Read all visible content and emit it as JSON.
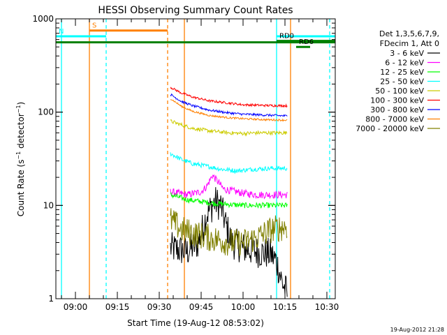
{
  "chart_data": {
    "type": "line",
    "title": "HESSI Observing Summary Count Rates",
    "xlabel": "Start Time (19-Aug-12 08:53:02)",
    "ylabel": "Count Rate (s⁻¹ detector⁻¹)",
    "ylabel_parts": {
      "pre": "Count Rate (s",
      "sup1": "−1",
      "mid": " detector",
      "sup2": "−1",
      "post": ")"
    },
    "yscale": "log",
    "ylim": [
      1,
      1000
    ],
    "xlim": [
      "08:53",
      "10:33"
    ],
    "y_ticks": [
      {
        "v": 1,
        "label": "1"
      },
      {
        "v": 10,
        "label": "10"
      },
      {
        "v": 100,
        "label": "100"
      },
      {
        "v": 1000,
        "label": "1000"
      }
    ],
    "x_ticks": [
      {
        "t": "09:00",
        "label": "09:00"
      },
      {
        "t": "09:15",
        "label": "09:15"
      },
      {
        "t": "09:30",
        "label": "09:30"
      },
      {
        "t": "09:45",
        "label": "09:45"
      },
      {
        "t": "10:00",
        "label": "10:00"
      },
      {
        "t": "10:15",
        "label": "10:15"
      },
      {
        "t": "10:30",
        "label": "10:30"
      }
    ],
    "grid": false,
    "legend_header": [
      "Det 1,3,5,6,7,9,",
      "FDecim 1, Att 0"
    ],
    "legend_placement": "right",
    "timestamp": "19-Aug-2012 21:28",
    "series": [
      {
        "name": "3 - 6 keV",
        "color": "#000000",
        "noise": 0.35,
        "points": [
          [
            "09:34",
            3.5
          ],
          [
            "09:40",
            3.2
          ],
          [
            "09:44",
            4
          ],
          [
            "09:47",
            8
          ],
          [
            "09:50",
            11
          ],
          [
            "09:52",
            10
          ],
          [
            "09:54",
            6
          ],
          [
            "09:56",
            4
          ],
          [
            "10:00",
            3.5
          ],
          [
            "10:05",
            3.2
          ],
          [
            "10:10",
            3
          ],
          [
            "10:12",
            2.5
          ],
          [
            "10:14",
            1.5
          ],
          [
            "10:16",
            1.1
          ]
        ]
      },
      {
        "name": "6 - 12 keV",
        "color": "#ff00ff",
        "noise": 0.08,
        "points": [
          [
            "09:34",
            14
          ],
          [
            "09:40",
            13
          ],
          [
            "09:45",
            14
          ],
          [
            "09:47",
            16
          ],
          [
            "09:49",
            21
          ],
          [
            "09:51",
            18
          ],
          [
            "09:53",
            15
          ],
          [
            "10:00",
            13.5
          ],
          [
            "10:05",
            13
          ],
          [
            "10:10",
            13
          ],
          [
            "10:16",
            13
          ]
        ]
      },
      {
        "name": "12 - 25 keV",
        "color": "#00ff00",
        "noise": 0.06,
        "points": [
          [
            "09:34",
            13
          ],
          [
            "09:40",
            11.5
          ],
          [
            "09:45",
            11
          ],
          [
            "09:50",
            10.5
          ],
          [
            "10:00",
            10
          ],
          [
            "10:10",
            10
          ],
          [
            "10:16",
            10
          ]
        ]
      },
      {
        "name": "25 - 50 keV",
        "color": "#00ffff",
        "noise": 0.05,
        "points": [
          [
            "09:34",
            36
          ],
          [
            "09:38",
            31
          ],
          [
            "09:42",
            28
          ],
          [
            "09:48",
            26
          ],
          [
            "09:52",
            24.5
          ],
          [
            "09:58",
            23.5
          ],
          [
            "10:04",
            24.5
          ],
          [
            "10:10",
            25
          ],
          [
            "10:16",
            25
          ]
        ]
      },
      {
        "name": "50 - 100 keV",
        "color": "#cccc00",
        "noise": 0.04,
        "points": [
          [
            "09:34",
            80
          ],
          [
            "09:38",
            73
          ],
          [
            "09:42",
            67
          ],
          [
            "09:48",
            63
          ],
          [
            "09:55",
            60
          ],
          [
            "10:00",
            59
          ],
          [
            "10:05",
            60
          ],
          [
            "10:10",
            60
          ],
          [
            "10:16",
            60
          ]
        ]
      },
      {
        "name": "100 - 300 keV",
        "color": "#ff0000",
        "noise": 0.025,
        "points": [
          [
            "09:34",
            185
          ],
          [
            "09:38",
            160
          ],
          [
            "09:42",
            145
          ],
          [
            "09:48",
            132
          ],
          [
            "09:55",
            125
          ],
          [
            "10:00",
            120
          ],
          [
            "10:08",
            118
          ],
          [
            "10:16",
            117
          ]
        ]
      },
      {
        "name": "300 - 800 keV",
        "color": "#0000ff",
        "noise": 0.025,
        "points": [
          [
            "09:34",
            155
          ],
          [
            "09:38",
            130
          ],
          [
            "09:42",
            117
          ],
          [
            "09:48",
            105
          ],
          [
            "09:55",
            98
          ],
          [
            "10:00",
            95
          ],
          [
            "10:08",
            93
          ],
          [
            "10:16",
            91
          ]
        ]
      },
      {
        "name": "800 - 7000 keV",
        "color": "#ff8000",
        "noise": 0.02,
        "points": [
          [
            "09:34",
            140
          ],
          [
            "09:38",
            115
          ],
          [
            "09:42",
            102
          ],
          [
            "09:48",
            92
          ],
          [
            "09:55",
            87
          ],
          [
            "10:00",
            85
          ],
          [
            "10:08",
            83
          ],
          [
            "10:16",
            82
          ]
        ]
      },
      {
        "name": "7000 - 20000 keV",
        "color": "#808000",
        "noise": 0.3,
        "points": [
          [
            "09:34",
            7
          ],
          [
            "09:38",
            5.5
          ],
          [
            "09:42",
            5
          ],
          [
            "09:48",
            4.5
          ],
          [
            "09:55",
            4
          ],
          [
            "10:00",
            4
          ],
          [
            "10:05",
            4.5
          ],
          [
            "10:10",
            5.5
          ],
          [
            "10:16",
            6
          ]
        ]
      }
    ],
    "vlines": [
      {
        "t": "08:55",
        "color": "#00ffff",
        "dash": false
      },
      {
        "t": "09:05",
        "color": "#ff8000",
        "dash": false
      },
      {
        "t": "09:11",
        "color": "#00ffff",
        "dash": true
      },
      {
        "t": "09:33",
        "color": "#ff8000",
        "dash": true
      },
      {
        "t": "09:39",
        "color": "#ff8000",
        "dash": false
      },
      {
        "t": "10:12",
        "color": "#00ffff",
        "dash": false
      },
      {
        "t": "10:17",
        "color": "#ff8000",
        "dash": false
      },
      {
        "t": "10:31",
        "color": "#00ffff",
        "dash": true
      }
    ],
    "flag_bars": [
      {
        "label": "S",
        "color": "#ff8000",
        "from": "09:05",
        "to": "09:33",
        "y": 750
      },
      {
        "label": "N",
        "color": "#00ffff",
        "from": "08:53",
        "to": "09:11",
        "y": 650
      },
      {
        "label": "",
        "color": "#00ffff",
        "from": "10:12",
        "to": "10:33",
        "y": 650
      },
      {
        "label": "",
        "color": "#008000",
        "from": "08:53",
        "to": "10:33",
        "y": 560
      },
      {
        "label": "RD0",
        "color": "#008000",
        "from": "10:12",
        "to": "10:33",
        "y": 580
      },
      {
        "label": "RD6",
        "color": "#008000",
        "from": "10:19",
        "to": "10:24",
        "y": 500
      }
    ]
  }
}
